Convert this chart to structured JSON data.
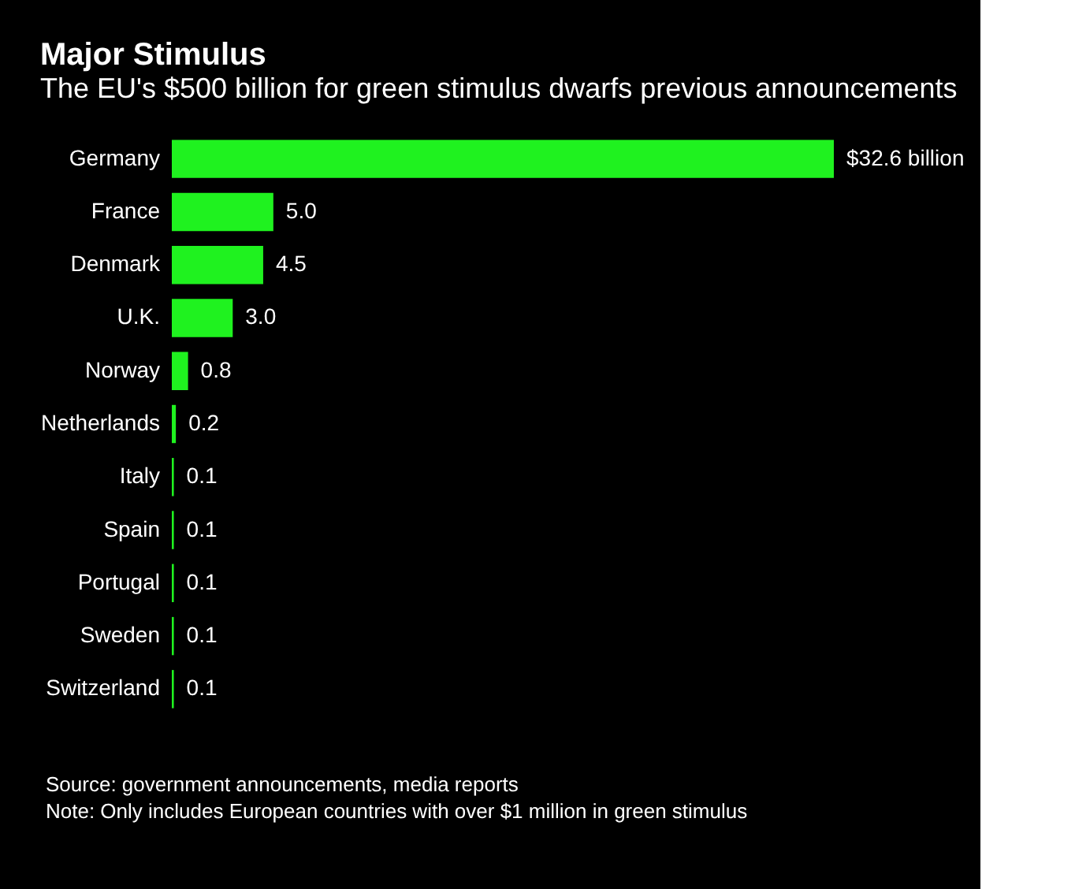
{
  "chart_data": {
    "type": "bar",
    "orientation": "horizontal",
    "title": "Major Stimulus",
    "subtitle": "The EU's $500 billion for green stimulus dwarfs previous announcements",
    "categories": [
      "Germany",
      "France",
      "Denmark",
      "U.K.",
      "Norway",
      "Netherlands",
      "Italy",
      "Spain",
      "Portugal",
      "Sweden",
      "Switzerland"
    ],
    "values": [
      32.6,
      5.0,
      4.5,
      3.0,
      0.8,
      0.2,
      0.1,
      0.1,
      0.1,
      0.1,
      0.1
    ],
    "value_labels": [
      "$32.6 billion",
      "5.0",
      "4.5",
      "3.0",
      "0.8",
      "0.2",
      "0.1",
      "0.1",
      "0.1",
      "0.1",
      "0.1"
    ],
    "color": "#1ff21f",
    "tick_labels": "y",
    "annotations": [
      "Source: government announcements, media reports",
      "Note: Only includes European countries with over $1 million in green stimulus"
    ]
  }
}
